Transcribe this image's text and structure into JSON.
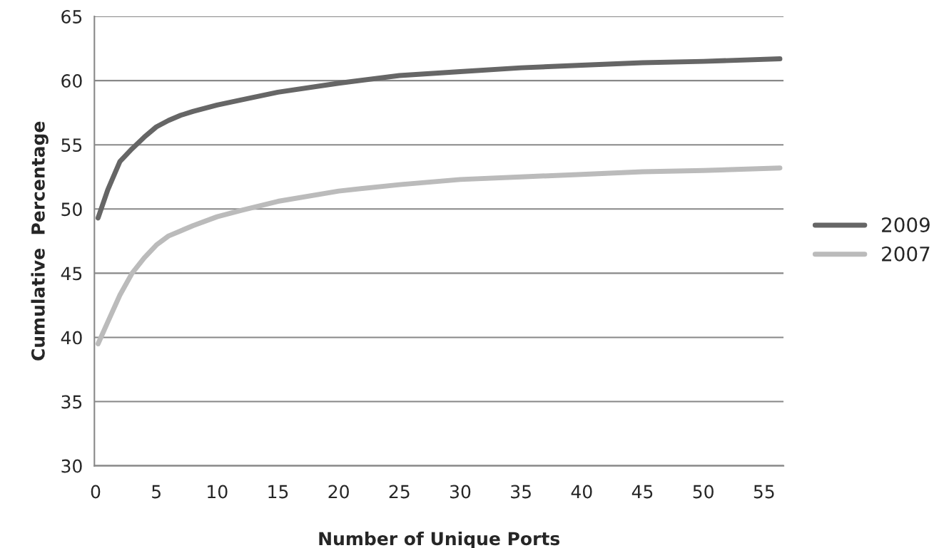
{
  "chart_data": {
    "type": "line",
    "xlabel": "Number of Unique Ports",
    "ylabel": "Cumulative  Percentage",
    "xlim": [
      -0.1,
      56.6
    ],
    "xticks": [
      0,
      5,
      10,
      15,
      20,
      25,
      30,
      35,
      40,
      45,
      50,
      55
    ],
    "ylim": [
      30,
      65
    ],
    "yticks": [
      30,
      35,
      40,
      45,
      50,
      55,
      60,
      65
    ],
    "grid": "y",
    "legend": "right",
    "marker": "none",
    "line_style": "solid",
    "series": [
      {
        "name": "2009",
        "color": "#666666",
        "x": [
          0.2,
          1,
          2,
          3,
          4,
          5,
          6,
          7,
          8,
          10,
          12,
          15,
          20,
          25,
          30,
          35,
          40,
          45,
          50,
          56.3
        ],
        "values": [
          49.3,
          51.5,
          53.7,
          54.7,
          55.6,
          56.4,
          56.9,
          57.3,
          57.6,
          58.1,
          58.5,
          59.1,
          59.8,
          60.4,
          60.7,
          61.0,
          61.2,
          61.4,
          61.5,
          61.7
        ]
      },
      {
        "name": "2007",
        "color": "#bbbbbb",
        "x": [
          0.2,
          1,
          2,
          3,
          4,
          5,
          6,
          7,
          8,
          10,
          12,
          15,
          20,
          25,
          30,
          35,
          40,
          45,
          50,
          56.3
        ],
        "values": [
          39.5,
          41.2,
          43.3,
          45.0,
          46.2,
          47.2,
          47.9,
          48.3,
          48.7,
          49.4,
          49.9,
          50.6,
          51.4,
          51.9,
          52.3,
          52.5,
          52.7,
          52.9,
          53.0,
          53.2
        ]
      }
    ]
  }
}
